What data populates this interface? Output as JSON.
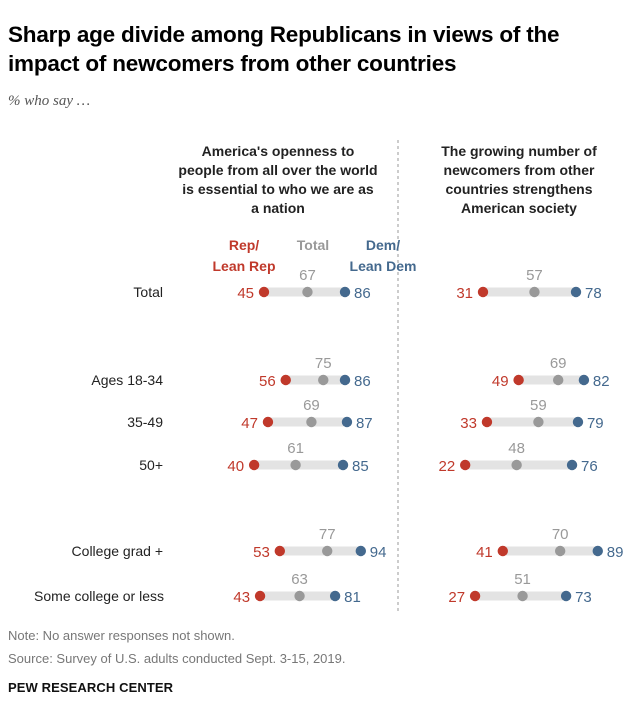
{
  "title": "Sharp age divide among Republicans in views of the impact of newcomers from other countries",
  "subtitle": "% who say …",
  "note": "Note: No answer responses not shown.",
  "source": "Source: Survey of U.S. adults conducted Sept. 3-15, 2019.",
  "brand": "PEW RESEARCH CENTER",
  "colors": {
    "rep": "#c0392b",
    "total": "#999999",
    "dem": "#44698e",
    "bar": "#e3e3e3",
    "divider": "#9a9a9a"
  },
  "legend": {
    "rep": "Rep/\nLean Rep",
    "total": "Total",
    "dem": "Dem/\nLean Dem"
  },
  "chart_data": {
    "type": "dot",
    "rows": [
      "Total",
      "Ages 18-34",
      "35-49",
      "50+",
      "College grad +",
      "Some college or less"
    ],
    "series_names": [
      "Rep/Lean Rep",
      "Total",
      "Dem/Lean Dem"
    ],
    "panels": [
      {
        "title": "America's openness to people from all over the world is essential to who we are as a nation",
        "rep": [
          45,
          56,
          47,
          40,
          53,
          43
        ],
        "total": [
          67,
          75,
          69,
          61,
          77,
          63
        ],
        "dem": [
          86,
          86,
          87,
          85,
          94,
          81
        ]
      },
      {
        "title": "The growing number of newcomers from other countries strengthens American society",
        "rep": [
          31,
          49,
          33,
          22,
          41,
          27
        ],
        "total": [
          57,
          69,
          59,
          48,
          70,
          51
        ],
        "dem": [
          78,
          82,
          79,
          76,
          89,
          73
        ]
      }
    ]
  }
}
